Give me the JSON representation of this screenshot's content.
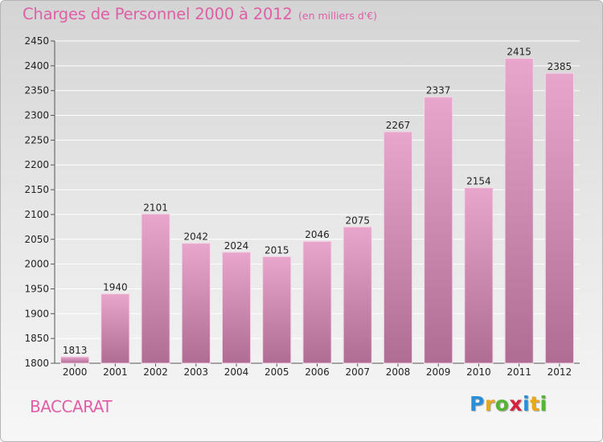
{
  "title": "Charges de Personnel 2000 à 2012",
  "subtitle": "(en milliers d'€)",
  "commune": "BACCARAT",
  "brand": {
    "letters": [
      "P",
      "r",
      "o",
      "x",
      "i",
      "t",
      "i"
    ],
    "colors": [
      "#2b8fd8",
      "#e8a817",
      "#55b432",
      "#d6223e",
      "#2b8fd8",
      "#e8a817",
      "#55b432"
    ]
  },
  "colors": {
    "accent": "#df5fa6",
    "bar_top": "#e8a6cc",
    "bar_bottom": "#b06d93"
  },
  "chart_data": {
    "type": "bar",
    "title": "Charges de Personnel 2000 à 2012",
    "subtitle": "(en milliers d'€)",
    "categories": [
      "2000",
      "2001",
      "2002",
      "2003",
      "2004",
      "2005",
      "2006",
      "2007",
      "2008",
      "2009",
      "2010",
      "2011",
      "2012"
    ],
    "values": [
      1813,
      1940,
      2101,
      2042,
      2024,
      2015,
      2046,
      2075,
      2267,
      2337,
      2154,
      2415,
      2385
    ],
    "ylim": [
      1800,
      2450
    ],
    "yticks": [
      1800,
      1850,
      1900,
      1950,
      2000,
      2050,
      2100,
      2150,
      2200,
      2250,
      2300,
      2350,
      2400,
      2450
    ],
    "grid": true,
    "xlabel": "",
    "ylabel": ""
  }
}
